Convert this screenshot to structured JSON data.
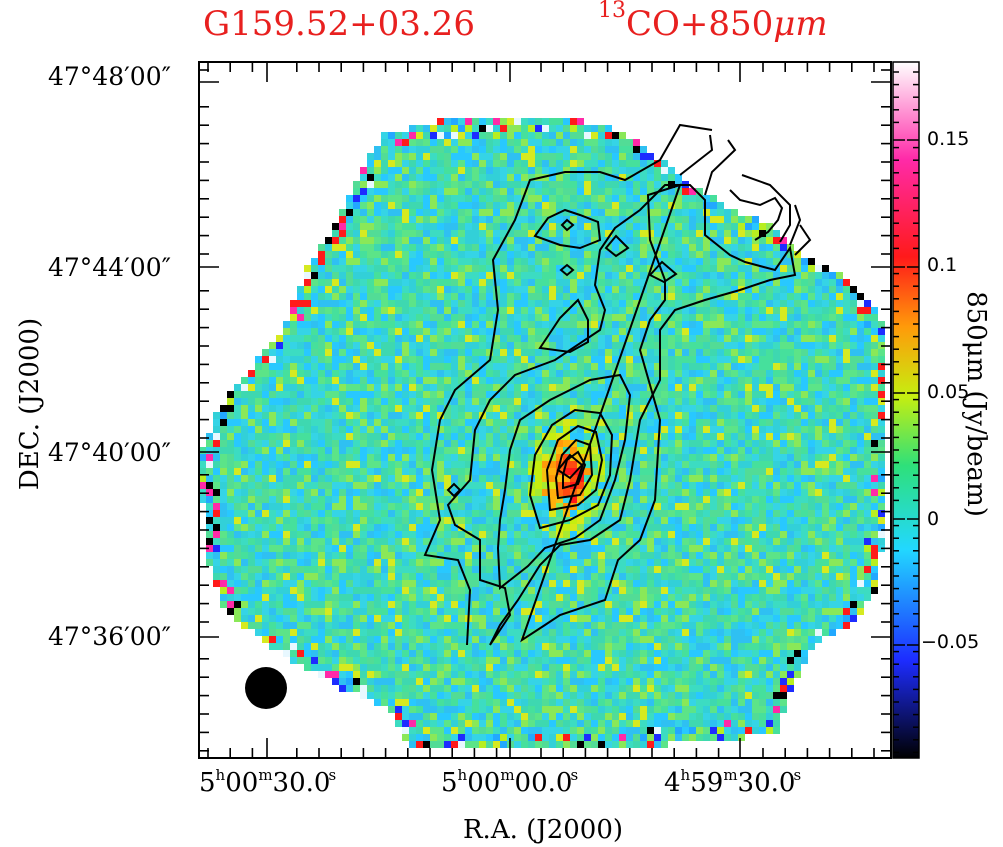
{
  "title_left": "G159.52+03.26",
  "title_right": {
    "sup": "13",
    "main": "CO+850",
    "unit": "μm"
  },
  "y_axis": {
    "title": "DEC. (J2000)",
    "tick_labels": [
      "47°48′00″",
      "47°44′00″",
      "47°40′00″",
      "47°36′00″"
    ]
  },
  "x_axis": {
    "title": "R.A. (J2000)",
    "tick_labels": [
      {
        "h": "5",
        "m": "00",
        "s": "30.0"
      },
      {
        "h": "5",
        "m": "00",
        "s": "00.0"
      },
      {
        "h": "4",
        "m": "59",
        "s": "30.0"
      }
    ]
  },
  "colorbar": {
    "title": "850μm (Jy/beam)",
    "tick_labels": [
      "0.15",
      "0.1",
      "0.05",
      "0",
      "−0.05"
    ],
    "colors": [
      "#000000",
      "#1d2cff",
      "#22d8ff",
      "#2ee07a",
      "#c6ee10",
      "#ff9a0a",
      "#ff1a1a",
      "#ff2aa8",
      "#ffffff"
    ]
  }
}
